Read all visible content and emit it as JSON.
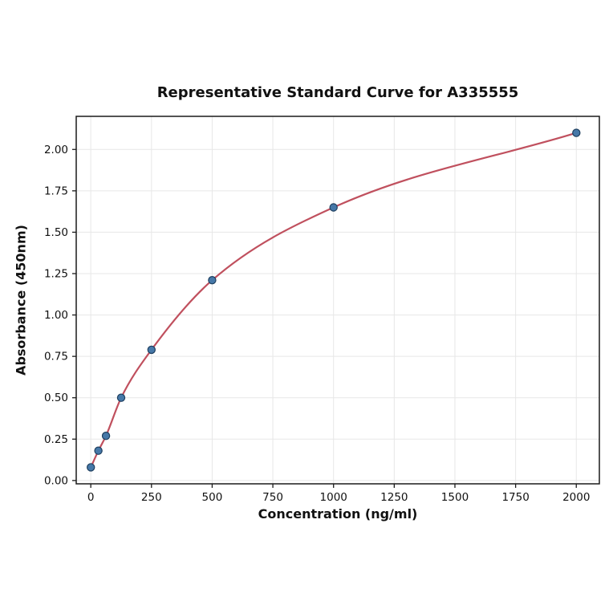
{
  "chart_data": {
    "type": "scatter",
    "title": "Representative Standard Curve for A335555",
    "xlabel": "Concentration (ng/ml)",
    "ylabel": "Absorbance (450nm)",
    "x": [
      0,
      31.25,
      62.5,
      125,
      250,
      500,
      1000,
      2000
    ],
    "y": [
      0.08,
      0.18,
      0.27,
      0.5,
      0.79,
      1.21,
      1.65,
      2.1
    ],
    "curve_style": "smooth monotone fit through all points",
    "xticks": [
      0,
      250,
      500,
      750,
      1000,
      1250,
      1500,
      1750,
      2000
    ],
    "xtick_labels": [
      "0",
      "250",
      "500",
      "750",
      "1000",
      "1250",
      "1500",
      "1750",
      "2000"
    ],
    "yticks": [
      0,
      0.25,
      0.5,
      0.75,
      1,
      1.25,
      1.5,
      1.75,
      2
    ],
    "ytick_labels": [
      "0.00",
      "0.25",
      "0.50",
      "0.75",
      "1.00",
      "1.25",
      "1.50",
      "1.75",
      "2.00"
    ],
    "xlim": [
      -60,
      2095
    ],
    "ylim": [
      -0.02,
      2.2
    ],
    "grid": true,
    "legend": "none",
    "colors": {
      "curve": "#c0505e",
      "marker_fill": "#4678a8",
      "marker_edge": "#1e3f5f",
      "grid": "#e7e7e7",
      "spine": "#1a1a1a",
      "background": "#ffffff"
    }
  }
}
